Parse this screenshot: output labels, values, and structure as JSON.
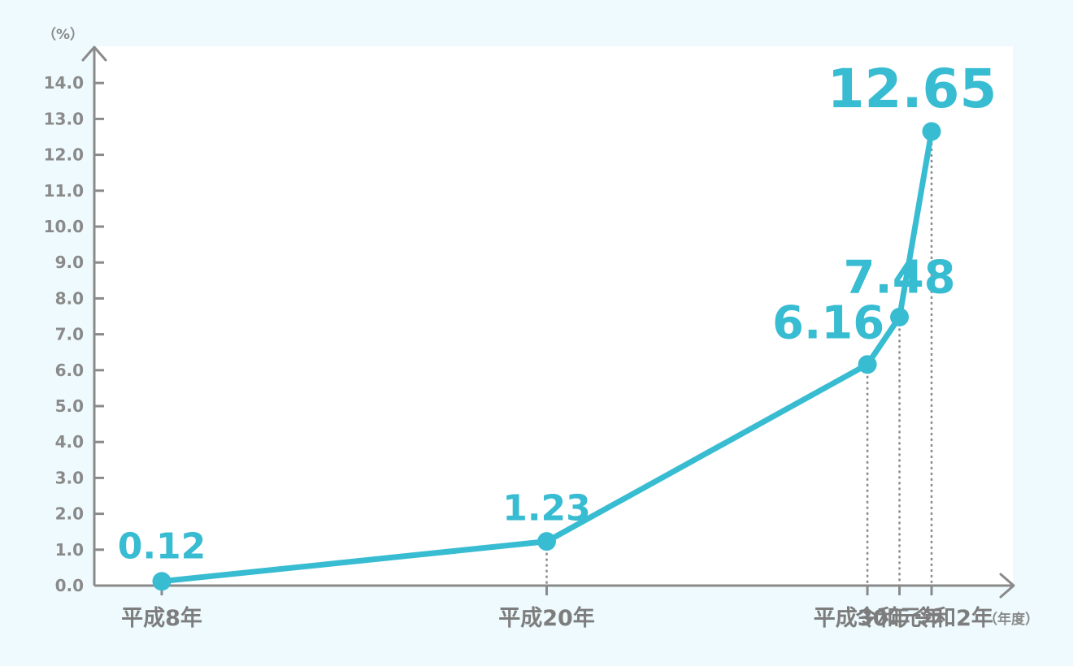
{
  "chart_data": {
    "type": "line",
    "title": "",
    "y_unit": "（%）",
    "x_unit": "（年度）",
    "ylim": [
      0,
      14.0
    ],
    "yticks": [
      "0.0",
      "1.0",
      "2.0",
      "3.0",
      "4.0",
      "5.0",
      "6.0",
      "7.0",
      "8.0",
      "9.0",
      "10.0",
      "11.0",
      "12.0",
      "13.0",
      "14.0"
    ],
    "categories": [
      "平成8年",
      "平成20年",
      "平成30年",
      "令和元年",
      "令和2年"
    ],
    "x": [
      8,
      20,
      30,
      31,
      32
    ],
    "values": [
      0.12,
      1.23,
      6.16,
      7.48,
      12.65
    ],
    "value_labels": [
      "0.12",
      "1.23",
      "6.16",
      "7.48",
      "12.65"
    ],
    "grid": false,
    "colors": {
      "line": "#37bcd2",
      "axis": "#8a8a8a",
      "background": "#eefafd",
      "plot_background": "#ffffff",
      "guide": "#8a8a8a"
    }
  }
}
